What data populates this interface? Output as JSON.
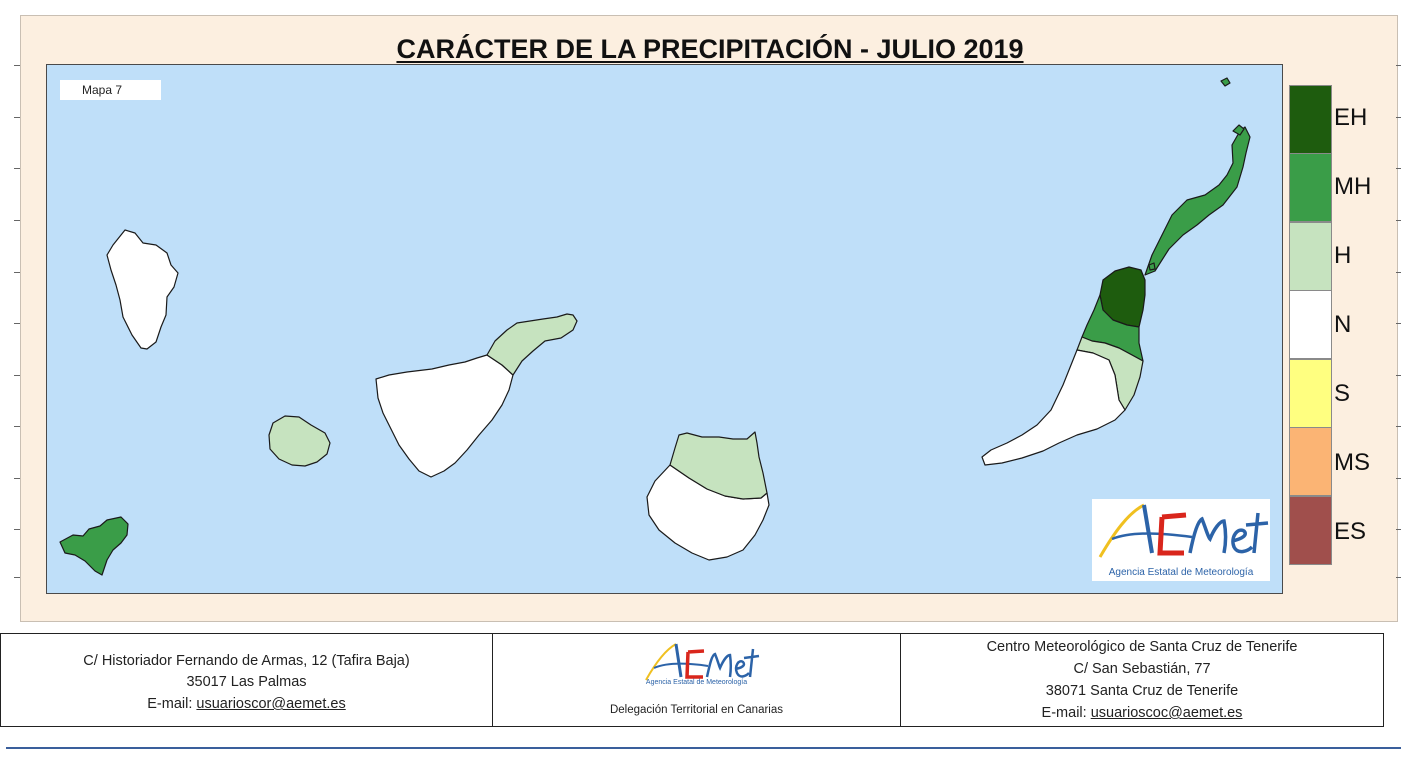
{
  "map": {
    "title": "CARÁCTER DE LA PRECIPITACIÓN - JULIO 2019",
    "tag": "Mapa 7",
    "logo_caption": "Agencia Estatal de Meteorología",
    "colors": {
      "sea": "#bfdff9",
      "EH": "#1e5c0e",
      "MH": "#3a9d48",
      "H": "#c6e3bf",
      "N": "#ffffff"
    }
  },
  "legend": {
    "items": [
      {
        "label": "EH",
        "color": "#1e5c0e"
      },
      {
        "label": "MH",
        "color": "#3a9d48"
      },
      {
        "label": "H",
        "color": "#c6e3bf"
      },
      {
        "label": "N",
        "color": "#ffffff"
      },
      {
        "label": "S",
        "color": "#ffff80"
      },
      {
        "label": "MS",
        "color": "#fbb474"
      },
      {
        "label": "ES",
        "color": "#a04f4c"
      }
    ]
  },
  "footer": {
    "left": {
      "line1": "C/ Historiador Fernando de Armas, 12 (Tafira Baja)",
      "line2": "35017 Las Palmas",
      "email_prefix": "E-mail: ",
      "email": "usuarioscor@aemet.es"
    },
    "middle": {
      "logo_caption": "Agencia Estatal de Meteorología",
      "label": "Delegación Territorial en Canarias"
    },
    "right": {
      "line1": "Centro Meteorológico de Santa Cruz de Tenerife",
      "line2": "C/ San Sebastián, 77",
      "line3": "38071 Santa Cruz de Tenerife",
      "email_prefix": "E-mail: ",
      "email": "usuarioscoc@aemet.es"
    }
  }
}
